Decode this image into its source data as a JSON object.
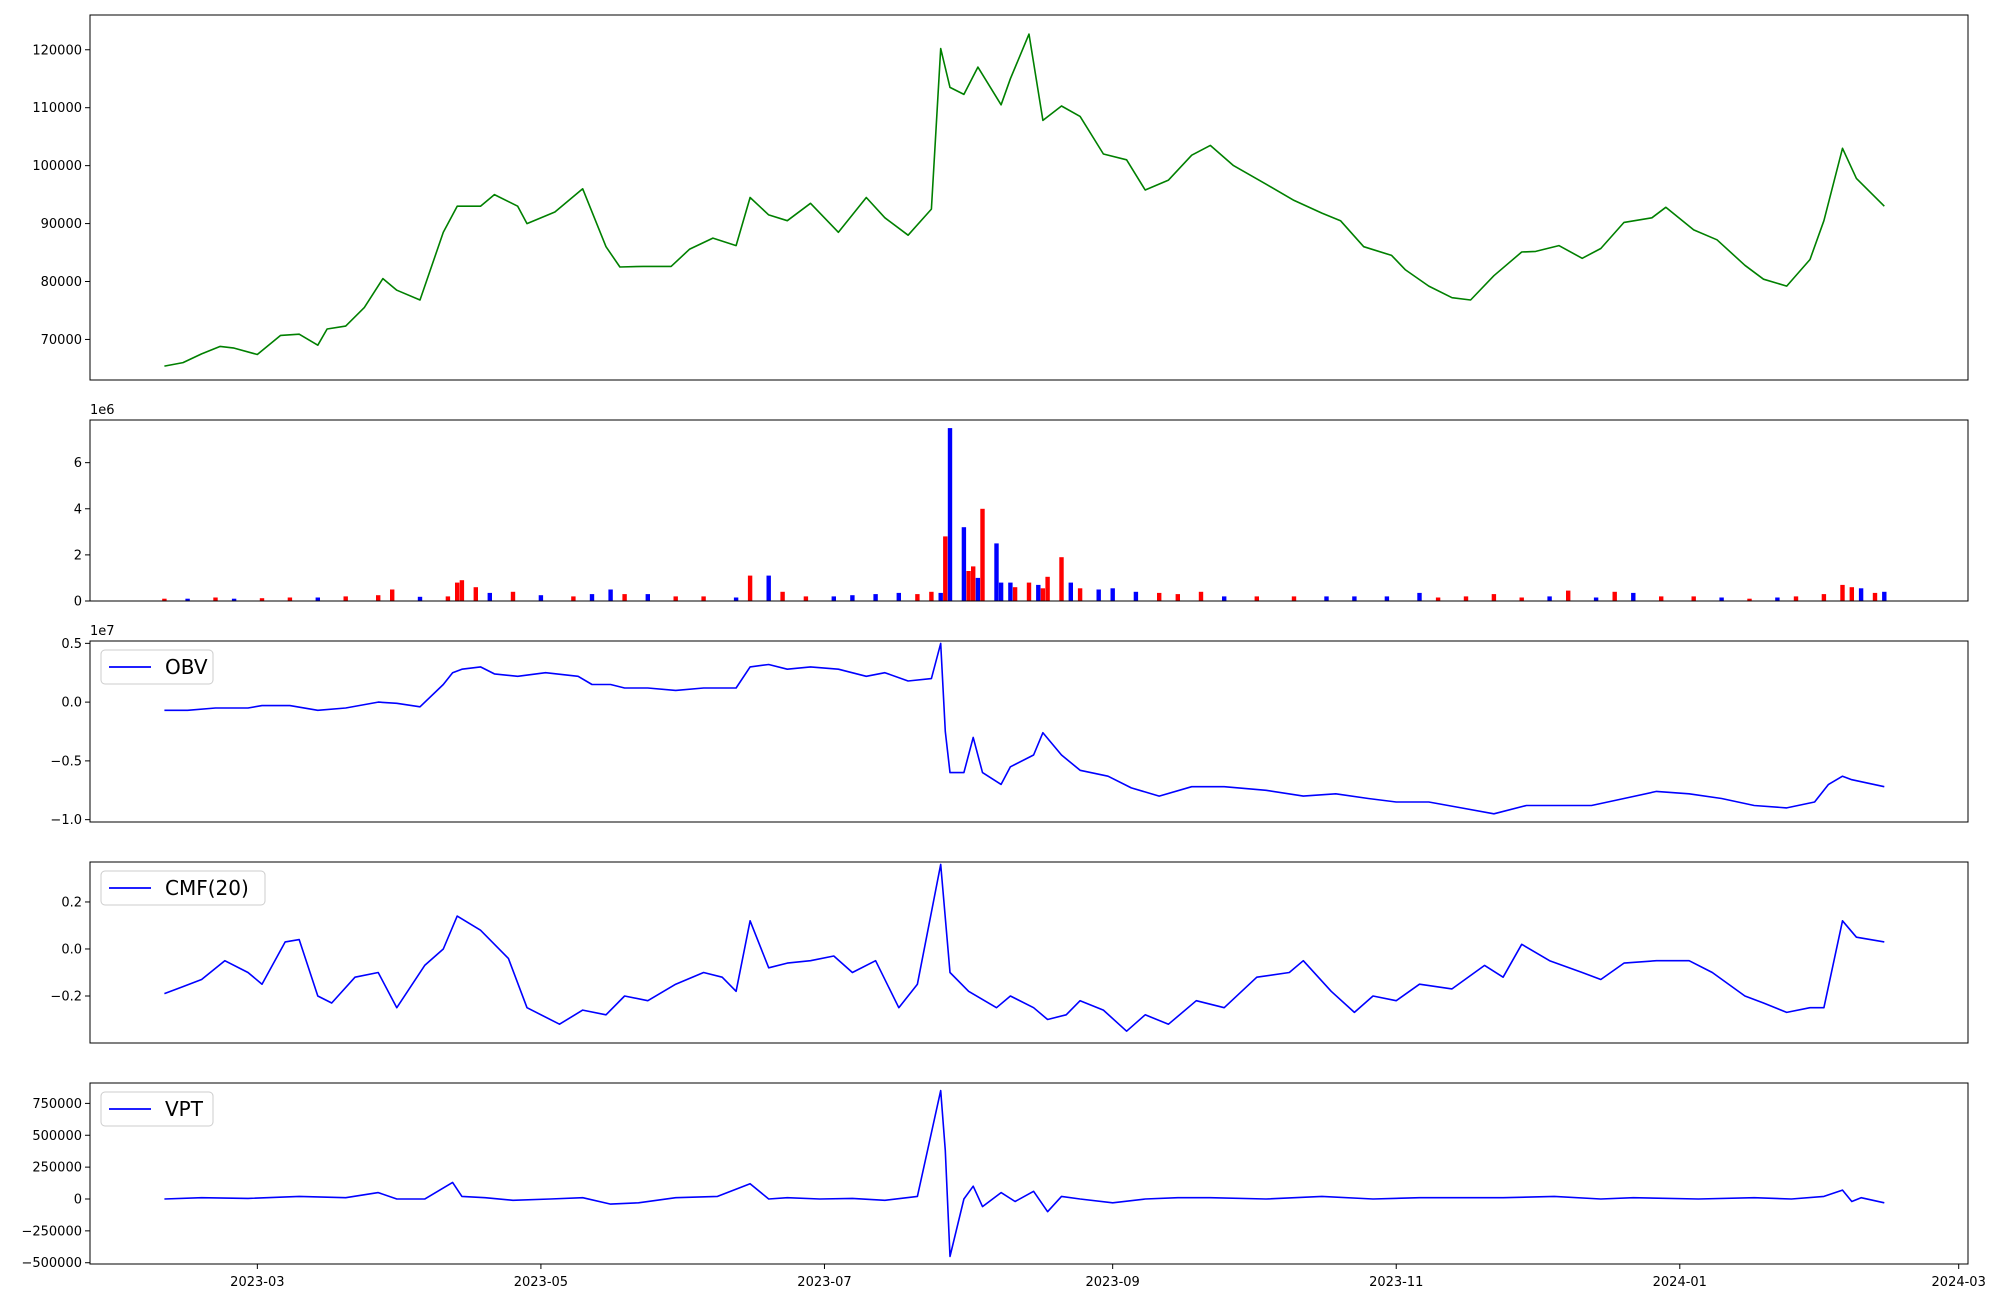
{
  "figure": {
    "shared_x": {
      "tick_labels": [
        "2023-03",
        "2023-05",
        "2023-07",
        "2023-09",
        "2023-11",
        "2024-01",
        "2024-03"
      ],
      "tick_dates": [
        "2023-03-01",
        "2023-05-01",
        "2023-07-01",
        "2023-09-01",
        "2023-11-01",
        "2024-01-01",
        "2024-03-01"
      ],
      "xlim": [
        "2023-01-24",
        "2024-03-03"
      ]
    }
  },
  "chart_data": [
    {
      "type": "line",
      "name": "price",
      "color": "#008000",
      "ylim": [
        63000,
        126000
      ],
      "yticks": [
        70000,
        80000,
        90000,
        100000,
        110000,
        120000
      ],
      "ytick_labels": [
        "70000",
        "80000",
        "90000",
        "100000",
        "110000",
        "120000"
      ],
      "legend": null,
      "x": [
        "2023-02-09",
        "2023-02-13",
        "2023-02-17",
        "2023-02-21",
        "2023-02-24",
        "2023-03-01",
        "2023-03-06",
        "2023-03-10",
        "2023-03-14",
        "2023-03-16",
        "2023-03-20",
        "2023-03-24",
        "2023-03-28",
        "2023-03-31",
        "2023-04-05",
        "2023-04-10",
        "2023-04-13",
        "2023-04-18",
        "2023-04-21",
        "2023-04-26",
        "2023-04-28",
        "2023-05-04",
        "2023-05-10",
        "2023-05-15",
        "2023-05-18",
        "2023-05-23",
        "2023-05-29",
        "2023-06-02",
        "2023-06-07",
        "2023-06-12",
        "2023-06-15",
        "2023-06-19",
        "2023-06-23",
        "2023-06-28",
        "2023-07-04",
        "2023-07-10",
        "2023-07-14",
        "2023-07-19",
        "2023-07-24",
        "2023-07-26",
        "2023-07-28",
        "2023-07-31",
        "2023-08-03",
        "2023-08-08",
        "2023-08-10",
        "2023-08-14",
        "2023-08-17",
        "2023-08-21",
        "2023-08-25",
        "2023-08-30",
        "2023-09-04",
        "2023-09-08",
        "2023-09-13",
        "2023-09-18",
        "2023-09-22",
        "2023-09-27",
        "2023-10-04",
        "2023-10-10",
        "2023-10-16",
        "2023-10-20",
        "2023-10-25",
        "2023-10-31",
        "2023-11-03",
        "2023-11-08",
        "2023-11-13",
        "2023-11-17",
        "2023-11-22",
        "2023-11-28",
        "2023-12-01",
        "2023-12-06",
        "2023-12-11",
        "2023-12-15",
        "2023-12-20",
        "2023-12-26",
        "2023-12-29",
        "2024-01-04",
        "2024-01-09",
        "2024-01-15",
        "2024-01-19",
        "2024-01-24",
        "2024-01-29",
        "2024-02-01",
        "2024-02-05",
        "2024-02-08",
        "2024-02-14"
      ],
      "y": [
        65400,
        66000,
        67500,
        68800,
        68500,
        67400,
        70700,
        70900,
        69000,
        71800,
        72300,
        75500,
        80500,
        78500,
        76800,
        88500,
        93000,
        93000,
        95000,
        93000,
        90000,
        92000,
        96000,
        86000,
        82500,
        82600,
        82600,
        85600,
        87500,
        86200,
        94500,
        91500,
        90500,
        93500,
        88500,
        94500,
        91000,
        88000,
        92500,
        120200,
        113500,
        112300,
        117000,
        110500,
        115000,
        122700,
        107800,
        110300,
        108500,
        102000,
        101000,
        95800,
        97500,
        101800,
        103500,
        100000,
        96800,
        94000,
        91800,
        90500,
        86000,
        84500,
        82000,
        79200,
        77200,
        76800,
        81000,
        85100,
        85200,
        86200,
        84000,
        85700,
        90200,
        91000,
        92800,
        88900,
        87200,
        82800,
        80400,
        79200,
        83800,
        90500,
        103000,
        97800,
        93000
      ]
    },
    {
      "type": "bar",
      "name": "volume",
      "offset_label": "1e6",
      "ylim": [
        0,
        7.85
      ],
      "yticks": [
        0,
        2,
        4,
        6
      ],
      "ytick_labels": [
        "0",
        "2",
        "4",
        "6"
      ],
      "colors": {
        "up": "#ff0000",
        "down": "#0000ff",
        "flat": "#000000"
      },
      "legend": null,
      "x": [
        "2023-02-09",
        "2023-02-14",
        "2023-02-20",
        "2023-02-24",
        "2023-03-02",
        "2023-03-08",
        "2023-03-14",
        "2023-03-20",
        "2023-03-27",
        "2023-03-30",
        "2023-04-05",
        "2023-04-11",
        "2023-04-13",
        "2023-04-14",
        "2023-04-17",
        "2023-04-20",
        "2023-04-25",
        "2023-05-01",
        "2023-05-08",
        "2023-05-12",
        "2023-05-16",
        "2023-05-19",
        "2023-05-24",
        "2023-05-30",
        "2023-06-05",
        "2023-06-12",
        "2023-06-15",
        "2023-06-19",
        "2023-06-22",
        "2023-06-27",
        "2023-07-03",
        "2023-07-07",
        "2023-07-12",
        "2023-07-17",
        "2023-07-21",
        "2023-07-24",
        "2023-07-26",
        "2023-07-27",
        "2023-07-28",
        "2023-07-31",
        "2023-08-01",
        "2023-08-02",
        "2023-08-03",
        "2023-08-04",
        "2023-08-07",
        "2023-08-08",
        "2023-08-10",
        "2023-08-11",
        "2023-08-14",
        "2023-08-16",
        "2023-08-17",
        "2023-08-18",
        "2023-08-21",
        "2023-08-23",
        "2023-08-25",
        "2023-08-29",
        "2023-09-01",
        "2023-09-06",
        "2023-09-11",
        "2023-09-15",
        "2023-09-20",
        "2023-09-25",
        "2023-10-02",
        "2023-10-10",
        "2023-10-17",
        "2023-10-23",
        "2023-10-30",
        "2023-11-06",
        "2023-11-10",
        "2023-11-16",
        "2023-11-22",
        "2023-11-28",
        "2023-12-04",
        "2023-12-08",
        "2023-12-14",
        "2023-12-18",
        "2023-12-22",
        "2023-12-28",
        "2024-01-04",
        "2024-01-10",
        "2024-01-16",
        "2024-01-22",
        "2024-01-26",
        "2024-02-01",
        "2024-02-05",
        "2024-02-07",
        "2024-02-09",
        "2024-02-12",
        "2024-02-14"
      ],
      "values": [
        0.1,
        0.1,
        0.15,
        0.1,
        0.12,
        0.15,
        0.15,
        0.2,
        0.25,
        0.5,
        0.18,
        0.2,
        0.8,
        0.9,
        0.6,
        0.35,
        0.4,
        0.25,
        0.2,
        0.3,
        0.5,
        0.3,
        0.3,
        0.2,
        0.2,
        0.15,
        1.1,
        1.1,
        0.4,
        0.2,
        0.2,
        0.25,
        0.3,
        0.35,
        0.3,
        0.4,
        0.35,
        2.8,
        7.5,
        3.2,
        1.3,
        1.5,
        1.0,
        4.0,
        2.5,
        0.8,
        0.8,
        0.6,
        0.8,
        0.7,
        0.55,
        1.05,
        1.9,
        0.8,
        0.55,
        0.5,
        0.55,
        0.4,
        0.35,
        0.3,
        0.4,
        0.2,
        0.2,
        0.2,
        0.2,
        0.2,
        0.2,
        0.35,
        0.15,
        0.2,
        0.3,
        0.15,
        0.2,
        0.45,
        0.15,
        0.4,
        0.35,
        0.2,
        0.2,
        0.15,
        0.1,
        0.15,
        0.2,
        0.3,
        0.7,
        0.6,
        0.55,
        0.35,
        0.4
      ],
      "direction": [
        "up",
        "down",
        "up",
        "down",
        "up",
        "up",
        "down",
        "up",
        "up",
        "up",
        "down",
        "up",
        "up",
        "up",
        "up",
        "down",
        "up",
        "down",
        "up",
        "down",
        "down",
        "up",
        "down",
        "up",
        "up",
        "down",
        "up",
        "down",
        "up",
        "up",
        "down",
        "down",
        "down",
        "down",
        "up",
        "up",
        "down",
        "up",
        "down",
        "down",
        "up",
        "up",
        "down",
        "up",
        "down",
        "down",
        "down",
        "up",
        "up",
        "down",
        "up",
        "up",
        "up",
        "down",
        "up",
        "down",
        "down",
        "down",
        "up",
        "up",
        "up",
        "down",
        "up",
        "up",
        "down",
        "down",
        "down",
        "down",
        "up",
        "up",
        "up",
        "up",
        "down",
        "up",
        "down",
        "up",
        "down",
        "up",
        "up",
        "down",
        "up",
        "down",
        "up",
        "up",
        "up",
        "up",
        "down",
        "up",
        "down"
      ]
    },
    {
      "type": "line",
      "name": "OBV",
      "color": "#0000ff",
      "offset_label": "1e7",
      "ylim": [
        -1.02,
        0.52
      ],
      "yticks": [
        -1.0,
        -0.5,
        0.0,
        0.5
      ],
      "ytick_labels": [
        "−1.0",
        "−0.5",
        "0.0",
        "0.5"
      ],
      "legend": {
        "label": "OBV",
        "loc": "upper left"
      },
      "x": [
        "2023-02-09",
        "2023-02-14",
        "2023-02-20",
        "2023-02-27",
        "2023-03-02",
        "2023-03-08",
        "2023-03-14",
        "2023-03-20",
        "2023-03-27",
        "2023-03-31",
        "2023-04-05",
        "2023-04-10",
        "2023-04-12",
        "2023-04-14",
        "2023-04-18",
        "2023-04-21",
        "2023-04-26",
        "2023-05-02",
        "2023-05-09",
        "2023-05-12",
        "2023-05-16",
        "2023-05-19",
        "2023-05-24",
        "2023-05-30",
        "2023-06-05",
        "2023-06-12",
        "2023-06-15",
        "2023-06-19",
        "2023-06-23",
        "2023-06-28",
        "2023-07-04",
        "2023-07-10",
        "2023-07-14",
        "2023-07-19",
        "2023-07-24",
        "2023-07-26",
        "2023-07-27",
        "2023-07-28",
        "2023-07-31",
        "2023-08-02",
        "2023-08-04",
        "2023-08-08",
        "2023-08-10",
        "2023-08-15",
        "2023-08-17",
        "2023-08-21",
        "2023-08-25",
        "2023-08-31",
        "2023-09-05",
        "2023-09-11",
        "2023-09-18",
        "2023-09-25",
        "2023-10-04",
        "2023-10-12",
        "2023-10-19",
        "2023-10-26",
        "2023-11-01",
        "2023-11-08",
        "2023-11-15",
        "2023-11-22",
        "2023-11-29",
        "2023-12-06",
        "2023-12-13",
        "2023-12-20",
        "2023-12-27",
        "2024-01-03",
        "2024-01-10",
        "2024-01-17",
        "2024-01-24",
        "2024-01-30",
        "2024-02-02",
        "2024-02-05",
        "2024-02-07",
        "2024-02-14"
      ],
      "y": [
        -0.07,
        -0.07,
        -0.05,
        -0.05,
        -0.03,
        -0.03,
        -0.07,
        -0.05,
        0.0,
        -0.01,
        -0.04,
        0.15,
        0.25,
        0.28,
        0.3,
        0.24,
        0.22,
        0.25,
        0.22,
        0.15,
        0.15,
        0.12,
        0.12,
        0.1,
        0.12,
        0.12,
        0.3,
        0.32,
        0.28,
        0.3,
        0.28,
        0.22,
        0.25,
        0.18,
        0.2,
        0.5,
        -0.25,
        -0.6,
        -0.6,
        -0.3,
        -0.6,
        -0.7,
        -0.55,
        -0.45,
        -0.26,
        -0.45,
        -0.58,
        -0.63,
        -0.73,
        -0.8,
        -0.72,
        -0.72,
        -0.75,
        -0.8,
        -0.78,
        -0.82,
        -0.85,
        -0.85,
        -0.9,
        -0.95,
        -0.88,
        -0.88,
        -0.88,
        -0.82,
        -0.76,
        -0.78,
        -0.82,
        -0.88,
        -0.9,
        -0.85,
        -0.7,
        -0.63,
        -0.66,
        -0.72
      ]
    },
    {
      "type": "line",
      "name": "CMF(20)",
      "color": "#0000ff",
      "ylim": [
        -0.4,
        0.37
      ],
      "yticks": [
        -0.2,
        0.0,
        0.2
      ],
      "ytick_labels": [
        "−0.2",
        "0.0",
        "0.2"
      ],
      "legend": {
        "label": "CMF(20)",
        "loc": "upper left"
      },
      "x": [
        "2023-02-09",
        "2023-02-13",
        "2023-02-17",
        "2023-02-22",
        "2023-02-27",
        "2023-03-02",
        "2023-03-07",
        "2023-03-10",
        "2023-03-14",
        "2023-03-17",
        "2023-03-22",
        "2023-03-27",
        "2023-03-31",
        "2023-04-06",
        "2023-04-10",
        "2023-04-13",
        "2023-04-18",
        "2023-04-24",
        "2023-04-28",
        "2023-05-05",
        "2023-05-10",
        "2023-05-15",
        "2023-05-19",
        "2023-05-24",
        "2023-05-30",
        "2023-06-05",
        "2023-06-09",
        "2023-06-12",
        "2023-06-15",
        "2023-06-19",
        "2023-06-23",
        "2023-06-28",
        "2023-07-03",
        "2023-07-07",
        "2023-07-12",
        "2023-07-17",
        "2023-07-21",
        "2023-07-26",
        "2023-07-28",
        "2023-08-01",
        "2023-08-07",
        "2023-08-10",
        "2023-08-15",
        "2023-08-18",
        "2023-08-22",
        "2023-08-25",
        "2023-08-30",
        "2023-09-04",
        "2023-09-08",
        "2023-09-13",
        "2023-09-19",
        "2023-09-25",
        "2023-10-02",
        "2023-10-09",
        "2023-10-12",
        "2023-10-18",
        "2023-10-23",
        "2023-10-27",
        "2023-11-01",
        "2023-11-06",
        "2023-11-13",
        "2023-11-20",
        "2023-11-24",
        "2023-11-28",
        "2023-12-04",
        "2023-12-11",
        "2023-12-15",
        "2023-12-20",
        "2023-12-27",
        "2024-01-03",
        "2024-01-08",
        "2024-01-15",
        "2024-01-19",
        "2024-01-24",
        "2024-01-29",
        "2024-02-01",
        "2024-02-05",
        "2024-02-08",
        "2024-02-14"
      ],
      "y": [
        -0.19,
        -0.16,
        -0.13,
        -0.05,
        -0.1,
        -0.15,
        0.03,
        0.04,
        -0.2,
        -0.23,
        -0.12,
        -0.1,
        -0.25,
        -0.07,
        0.0,
        0.14,
        0.08,
        -0.04,
        -0.25,
        -0.32,
        -0.26,
        -0.28,
        -0.2,
        -0.22,
        -0.15,
        -0.1,
        -0.12,
        -0.18,
        0.12,
        -0.08,
        -0.06,
        -0.05,
        -0.03,
        -0.1,
        -0.05,
        -0.25,
        -0.15,
        0.36,
        -0.1,
        -0.18,
        -0.25,
        -0.2,
        -0.25,
        -0.3,
        -0.28,
        -0.22,
        -0.26,
        -0.35,
        -0.28,
        -0.32,
        -0.22,
        -0.25,
        -0.12,
        -0.1,
        -0.05,
        -0.18,
        -0.27,
        -0.2,
        -0.22,
        -0.15,
        -0.17,
        -0.07,
        -0.12,
        0.02,
        -0.05,
        -0.1,
        -0.13,
        -0.06,
        -0.05,
        -0.05,
        -0.1,
        -0.2,
        -0.23,
        -0.27,
        -0.25,
        -0.25,
        0.12,
        0.05,
        0.03
      ]
    },
    {
      "type": "line",
      "name": "VPT",
      "color": "#0000ff",
      "ylim": [
        -510000,
        910000
      ],
      "yticks": [
        -500000,
        -250000,
        0,
        250000,
        500000,
        750000
      ],
      "ytick_labels": [
        "−500000",
        "−250000",
        "0",
        "250000",
        "500000",
        "750000"
      ],
      "legend": {
        "label": "VPT",
        "loc": "upper left"
      },
      "x": [
        "2023-02-09",
        "2023-02-17",
        "2023-02-27",
        "2023-03-10",
        "2023-03-20",
        "2023-03-27",
        "2023-03-31",
        "2023-04-06",
        "2023-04-12",
        "2023-04-14",
        "2023-04-19",
        "2023-04-25",
        "2023-05-03",
        "2023-05-10",
        "2023-05-16",
        "2023-05-22",
        "2023-05-30",
        "2023-06-08",
        "2023-06-15",
        "2023-06-19",
        "2023-06-23",
        "2023-06-30",
        "2023-07-07",
        "2023-07-14",
        "2023-07-21",
        "2023-07-26",
        "2023-07-27",
        "2023-07-28",
        "2023-07-31",
        "2023-08-02",
        "2023-08-04",
        "2023-08-08",
        "2023-08-11",
        "2023-08-15",
        "2023-08-18",
        "2023-08-21",
        "2023-08-25",
        "2023-09-01",
        "2023-09-08",
        "2023-09-15",
        "2023-09-22",
        "2023-10-04",
        "2023-10-16",
        "2023-10-27",
        "2023-11-06",
        "2023-11-14",
        "2023-11-24",
        "2023-12-05",
        "2023-12-15",
        "2023-12-22",
        "2024-01-05",
        "2024-01-17",
        "2024-01-25",
        "2024-02-01",
        "2024-02-05",
        "2024-02-07",
        "2024-02-09",
        "2024-02-14"
      ],
      "y": [
        0,
        10000,
        5000,
        20000,
        10000,
        50000,
        0,
        0,
        130000,
        20000,
        10000,
        -10000,
        0,
        10000,
        -40000,
        -30000,
        10000,
        20000,
        120000,
        0,
        10000,
        0,
        5000,
        -10000,
        20000,
        850000,
        380000,
        -450000,
        0,
        100000,
        -60000,
        50000,
        -20000,
        60000,
        -100000,
        20000,
        0,
        -30000,
        0,
        10000,
        10000,
        0,
        20000,
        0,
        10000,
        10000,
        10000,
        20000,
        0,
        10000,
        0,
        10000,
        0,
        20000,
        70000,
        -20000,
        10000,
        -30000
      ]
    }
  ]
}
